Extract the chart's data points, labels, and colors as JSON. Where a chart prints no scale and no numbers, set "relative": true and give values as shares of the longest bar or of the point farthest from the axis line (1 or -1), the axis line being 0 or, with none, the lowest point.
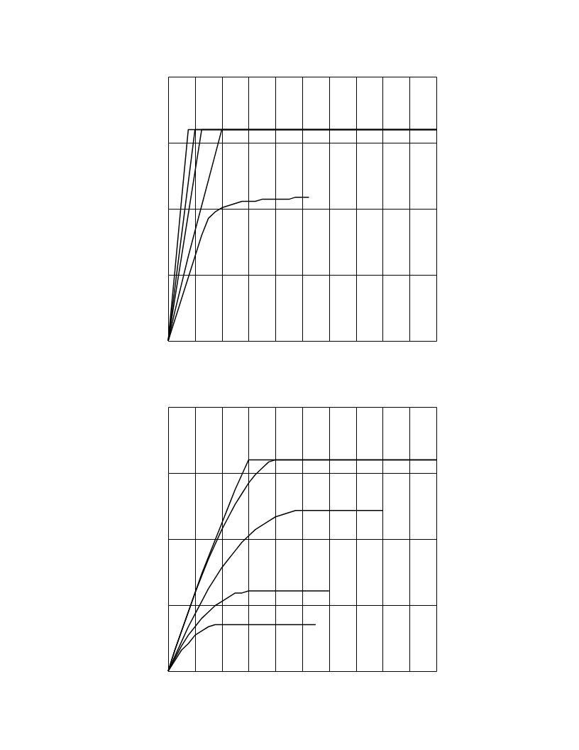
{
  "chart_data": [
    {
      "type": "line",
      "relative": true,
      "grid": true,
      "legend": false,
      "categories": [
        null,
        null,
        null,
        null,
        null,
        null,
        null,
        null,
        null,
        null,
        null,
        null,
        null,
        null,
        null,
        null,
        null,
        null,
        null,
        null,
        null,
        null,
        null,
        null,
        null,
        null,
        null,
        null,
        null,
        null,
        null,
        null,
        null,
        null,
        null,
        null,
        null,
        null,
        null,
        null,
        null
      ],
      "series": [
        {
          "color": "#000000",
          "values": [
            0,
            0.33,
            0.67,
            1,
            1,
            1,
            1,
            1,
            1,
            1,
            1,
            1,
            1,
            1,
            1,
            1,
            1,
            1,
            1,
            1,
            1,
            1,
            1,
            1,
            1,
            1,
            1,
            1,
            1,
            1,
            1,
            1,
            1,
            1,
            1,
            1,
            1,
            1,
            1,
            1,
            1
          ]
        },
        {
          "color": "#000000",
          "values": [
            0,
            0.25,
            0.5,
            0.75,
            1,
            1,
            1,
            1,
            1,
            1,
            1,
            1,
            1,
            1,
            1,
            1,
            1,
            1,
            1,
            1,
            1,
            1,
            1,
            1,
            1,
            1,
            1,
            1,
            1,
            1,
            1,
            1,
            1,
            1,
            1,
            1,
            1,
            1,
            1,
            1,
            1
          ]
        },
        {
          "color": "#000000",
          "values": [
            0,
            0.2,
            0.4,
            0.6,
            0.8,
            1,
            1,
            1,
            1,
            1,
            1,
            1,
            1,
            1,
            1,
            1,
            1,
            1,
            1,
            1,
            1,
            1,
            1,
            1,
            1,
            1,
            1,
            1,
            1,
            1,
            1,
            1,
            1,
            1,
            1,
            1,
            1,
            1,
            1,
            1,
            1
          ]
        },
        {
          "color": "#000000",
          "values": [
            0,
            0.14,
            0.27,
            0.4,
            0.52,
            0.64,
            0.76,
            0.88,
            1,
            1,
            1,
            1,
            1,
            1,
            1,
            1,
            1,
            1,
            1,
            1,
            1,
            1,
            1,
            1,
            1,
            1,
            1,
            1,
            1,
            1,
            1,
            1,
            1,
            1,
            1,
            1,
            1,
            1,
            1,
            1,
            1
          ]
        },
        {
          "color": "#000000",
          "values": [
            0,
            0.1,
            0.2,
            0.3,
            0.4,
            0.5,
            0.58,
            0.61,
            0.63,
            0.64,
            0.65,
            0.66,
            0.66,
            0.66,
            0.67,
            0.67,
            0.67,
            0.67,
            0.67,
            0.68,
            0.68,
            0.68,
            null,
            null,
            null,
            null,
            null,
            null,
            null,
            null,
            null,
            null,
            null,
            null,
            null,
            null,
            null,
            null,
            null,
            null,
            null
          ]
        }
      ]
    },
    {
      "type": "line",
      "relative": true,
      "grid": true,
      "legend": false,
      "categories": [
        null,
        null,
        null,
        null,
        null,
        null,
        null,
        null,
        null,
        null,
        null,
        null,
        null,
        null,
        null,
        null,
        null,
        null,
        null,
        null,
        null,
        null,
        null,
        null,
        null,
        null,
        null,
        null,
        null,
        null,
        null,
        null,
        null,
        null,
        null,
        null,
        null,
        null,
        null,
        null,
        null
      ],
      "series": [
        {
          "color": "#000000",
          "values": [
            0,
            0.1,
            0.19,
            0.28,
            0.37,
            0.46,
            0.54,
            0.62,
            0.7,
            0.78,
            0.86,
            0.93,
            1,
            1,
            1,
            1,
            1,
            1,
            1,
            1,
            1,
            1,
            1,
            1,
            1,
            1,
            1,
            1,
            1,
            1,
            1,
            1,
            1,
            1,
            1,
            1,
            1,
            1,
            1,
            1,
            1
          ]
        },
        {
          "color": "#000000",
          "values": [
            0,
            0.1,
            0.19,
            0.28,
            0.37,
            0.45,
            0.53,
            0.6,
            0.67,
            0.73,
            0.79,
            0.84,
            0.89,
            0.93,
            0.96,
            0.99,
            1,
            1,
            1,
            1,
            1,
            1,
            1,
            1,
            1,
            1,
            1,
            1,
            1,
            1,
            1,
            1,
            1,
            1,
            1,
            1,
            1,
            1,
            1,
            1,
            1
          ]
        },
        {
          "color": "#000000",
          "values": [
            0,
            0.07,
            0.14,
            0.21,
            0.27,
            0.33,
            0.39,
            0.44,
            0.49,
            0.53,
            0.57,
            0.61,
            0.64,
            0.67,
            0.69,
            0.71,
            0.73,
            0.74,
            0.75,
            0.76,
            0.76,
            0.76,
            0.76,
            0.76,
            0.76,
            0.76,
            0.76,
            0.76,
            0.76,
            0.76,
            0.76,
            0.76,
            0.76,
            null,
            null,
            null,
            null,
            null,
            null,
            null,
            null
          ]
        },
        {
          "color": "#000000",
          "values": [
            0,
            0.06,
            0.12,
            0.17,
            0.21,
            0.25,
            0.28,
            0.31,
            0.33,
            0.35,
            0.37,
            0.37,
            0.38,
            0.38,
            0.38,
            0.38,
            0.38,
            0.38,
            0.38,
            0.38,
            0.38,
            0.38,
            0.38,
            0.38,
            0.38,
            null,
            null,
            null,
            null,
            null,
            null,
            null,
            null,
            null,
            null,
            null,
            null,
            null,
            null,
            null,
            null
          ]
        },
        {
          "color": "#000000",
          "values": [
            0,
            0.05,
            0.1,
            0.13,
            0.17,
            0.19,
            0.21,
            0.22,
            0.22,
            0.22,
            0.22,
            0.22,
            0.22,
            0.22,
            0.22,
            0.22,
            0.22,
            0.22,
            0.22,
            0.22,
            0.22,
            0.22,
            0.22,
            null,
            null,
            null,
            null,
            null,
            null,
            null,
            null,
            null,
            null,
            null,
            null,
            null,
            null,
            null,
            null,
            null,
            null
          ]
        }
      ]
    }
  ]
}
